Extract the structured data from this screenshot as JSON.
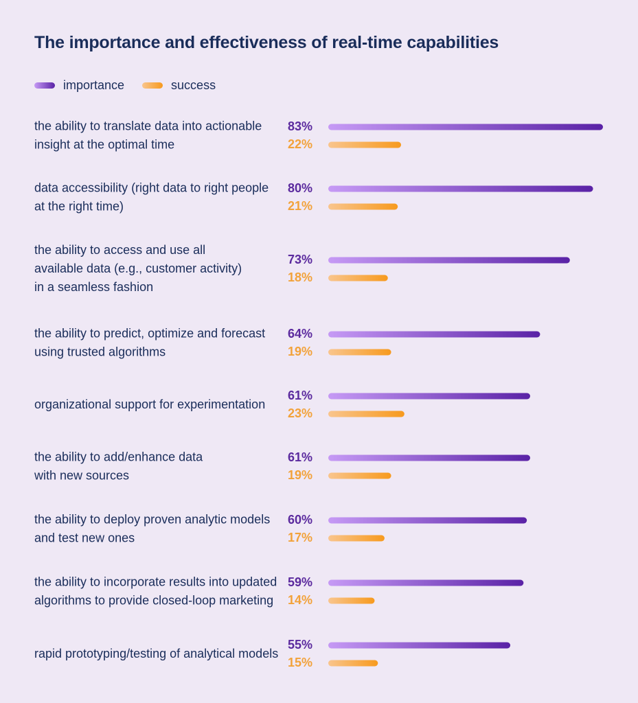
{
  "colors": {
    "background": "#efe8f5",
    "text": "#1a2d5a",
    "importance_start": "#c69af5",
    "importance_end": "#5a22a6",
    "importance_label": "#5b2a9e",
    "success_start": "#f9c58d",
    "success_end": "#f79a1e",
    "success_label": "#f2a23a"
  },
  "legend": {
    "position": "top-left",
    "items": [
      {
        "label": "importance"
      },
      {
        "label": "success"
      }
    ]
  },
  "chart_data": {
    "type": "bar",
    "orientation": "horizontal",
    "title": "The importance and effectiveness of real-time capabilities",
    "xlabel": "",
    "ylabel": "",
    "unit": "%",
    "xlim": [
      0,
      83
    ],
    "grid": false,
    "categories": [
      [
        "the ability to translate data into actionable",
        "insight at the optimal time"
      ],
      [
        "data accessibility (right data to right people",
        "at the right time)"
      ],
      [
        "the ability to access and use all",
        "available data (e.g., customer activity)",
        "in a seamless fashion"
      ],
      [
        "the ability to predict, optimize and forecast",
        "using trusted algorithms"
      ],
      [
        "organizational support for experimentation"
      ],
      [
        "the ability to add/enhance data",
        "with new sources"
      ],
      [
        "the ability to deploy proven analytic models",
        "and test new ones"
      ],
      [
        "the ability to incorporate results into updated",
        "algorithms to provide closed-loop marketing"
      ],
      [
        "rapid prototyping/testing of analytical models"
      ]
    ],
    "series": [
      {
        "name": "importance",
        "values": [
          83,
          80,
          73,
          64,
          61,
          61,
          60,
          59,
          55
        ],
        "labels": [
          "83%",
          "80%",
          "73%",
          "64%",
          "61%",
          "61%",
          "60%",
          "59%",
          "55%"
        ]
      },
      {
        "name": "success",
        "values": [
          22,
          21,
          18,
          19,
          23,
          19,
          17,
          14,
          15
        ],
        "labels": [
          "22%",
          "21%",
          "18%",
          "19%",
          "23%",
          "19%",
          "17%",
          "14%",
          "15%"
        ]
      }
    ]
  }
}
